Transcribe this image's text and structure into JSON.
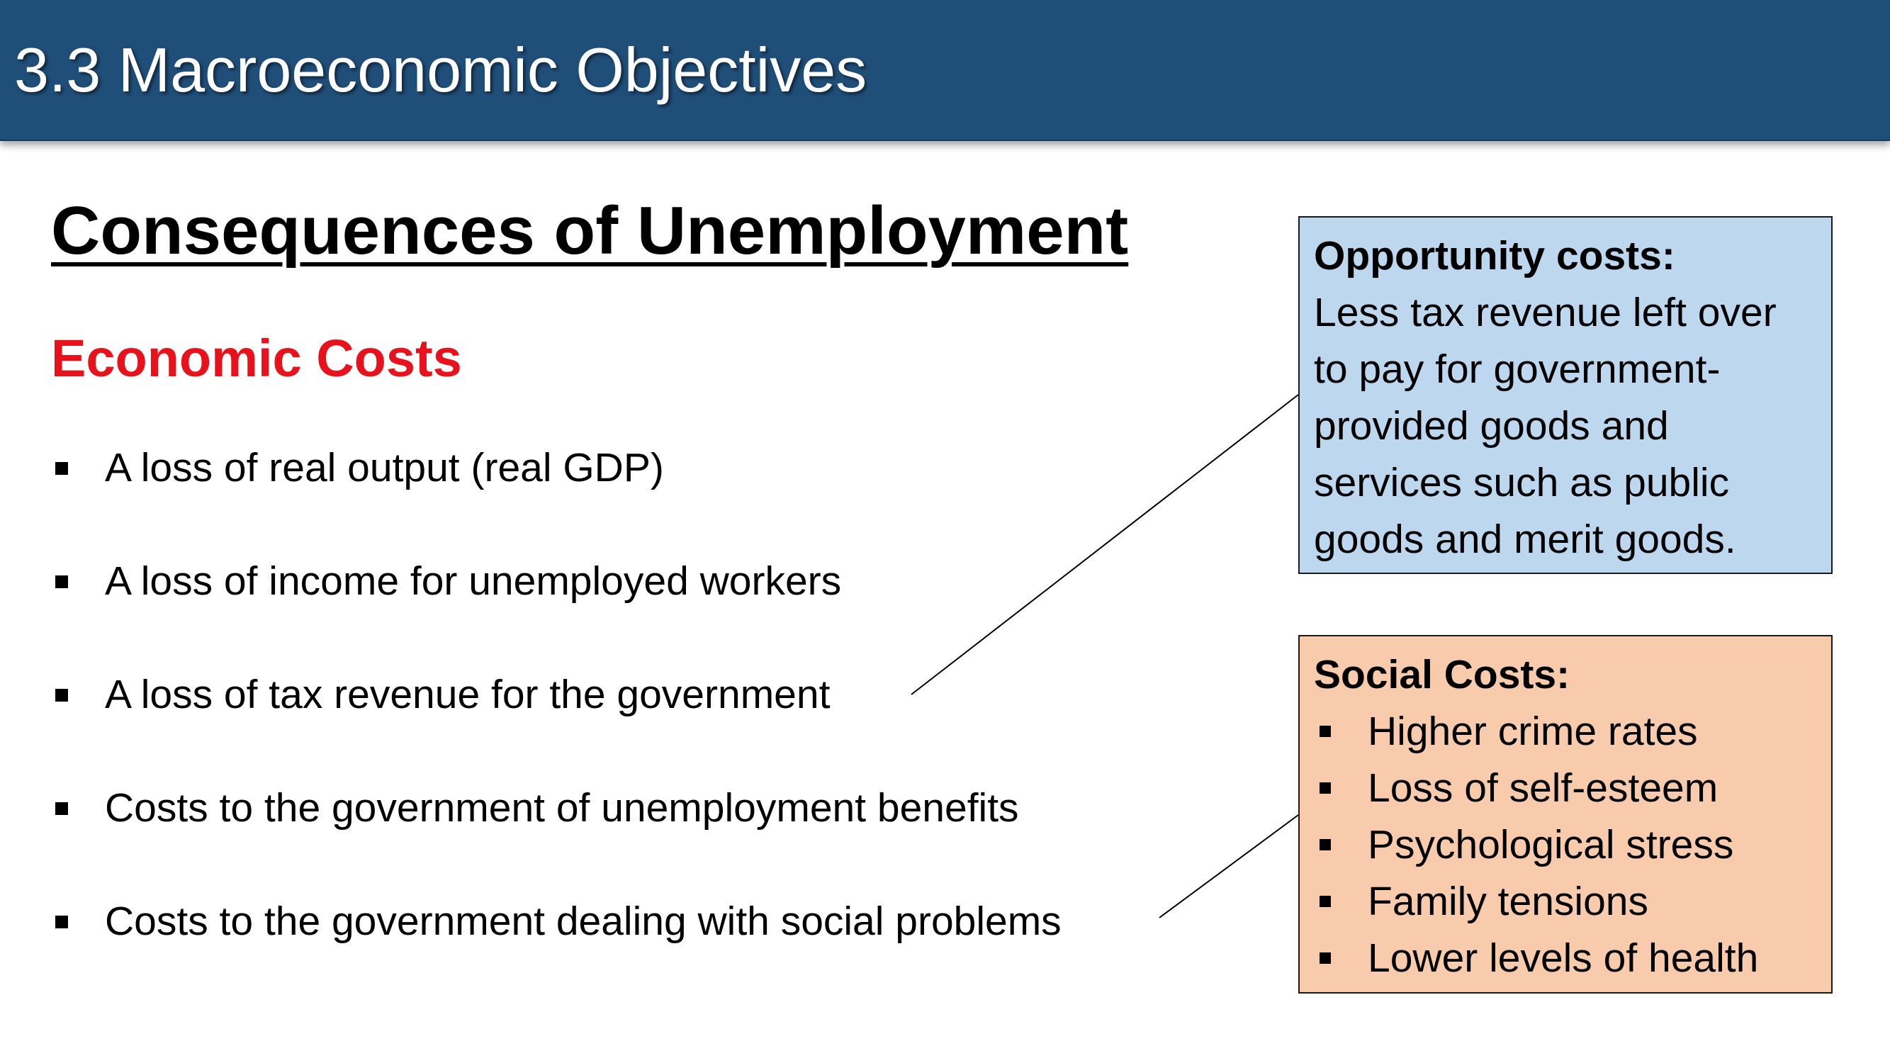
{
  "header": {
    "title": "3.3 Macroeconomic Objectives"
  },
  "main": {
    "heading": "Consequences of Unemployment",
    "section_heading": "Economic Costs",
    "economic_costs": [
      "A loss of real output (real GDP)",
      "A loss of income for unemployed workers",
      "A loss of tax revenue for the government",
      "Costs to the government of unemployment benefits",
      "Costs to the government dealing with social problems"
    ]
  },
  "opportunity_box": {
    "title": "Opportunity costs:",
    "lines": [
      "Less tax revenue left over",
      "to pay for government-",
      "provided goods and",
      "services such as public",
      "goods and merit goods."
    ]
  },
  "social_box": {
    "title": "Social Costs:",
    "items": [
      "Higher crime rates",
      "Loss of self-esteem",
      "Psychological stress",
      "Family tensions",
      "Lower levels of health"
    ]
  },
  "colors": {
    "header_bg": "#1f4e79",
    "section_heading": "#e8121c",
    "opportunity_bg": "#bdd7ee",
    "social_bg": "#f8cbad"
  }
}
